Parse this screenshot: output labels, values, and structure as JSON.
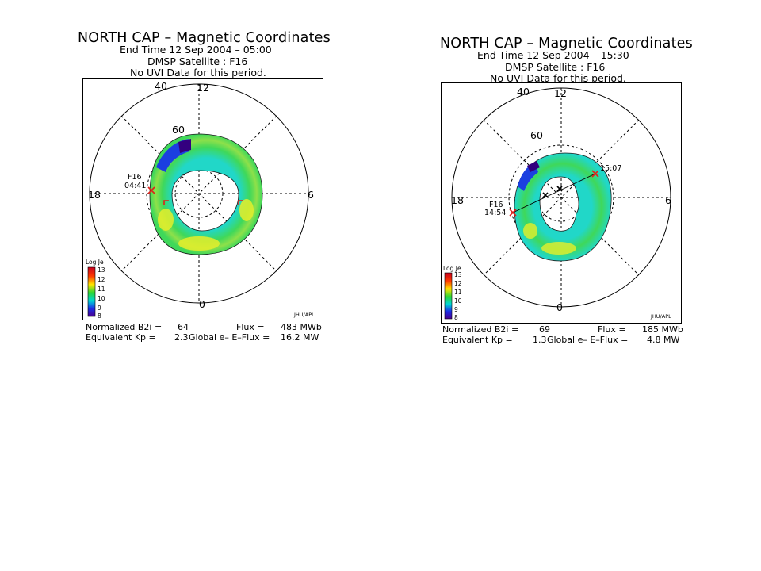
{
  "panels": [
    {
      "title": "NORTH CAP – Magnetic Coordinates",
      "end_time": "End Time 12 Sep 2004 – 05:00",
      "satellite": "DMSP Satellite : F16",
      "uvi_note": "No UVI Data for this period.",
      "grid_labels": {
        "lat_outer": "40",
        "lat_inner": "60",
        "mlt_top": "12",
        "mlt_left": "18",
        "mlt_right": "6",
        "mlt_bottom": "0"
      },
      "pass_labels": [
        {
          "name": "F16",
          "time": "04:41"
        }
      ],
      "colorbar": {
        "label": "Log Je",
        "ticks": [
          "13",
          "12",
          "11",
          "10",
          "9",
          "8"
        ]
      },
      "credit": "JHU/APL",
      "stats": {
        "b2i_label": "Normalized B2i =",
        "b2i_value": "64",
        "flux_label": "Flux =",
        "flux_value": "483 MWb",
        "kp_label": "Equivalent Kp =",
        "kp_value": "2.3",
        "eflux_label": "Global e– E–Flux =",
        "eflux_value": "16.2 MW"
      }
    },
    {
      "title": "NORTH CAP – Magnetic Coordinates",
      "end_time": "End Time 12 Sep 2004 – 15:30",
      "satellite": "DMSP Satellite : F16",
      "uvi_note": "No UVI Data for this period.",
      "grid_labels": {
        "lat_outer": "40",
        "lat_inner": "60",
        "mlt_top": "12",
        "mlt_left": "18",
        "mlt_right": "6",
        "mlt_bottom": "0"
      },
      "pass_labels": [
        {
          "name": "F16",
          "time": "14:54"
        },
        {
          "name": "",
          "time": "15:07"
        }
      ],
      "colorbar": {
        "label": "Log Je",
        "ticks": [
          "13",
          "12",
          "11",
          "10",
          "9",
          "8"
        ]
      },
      "credit": "JHU/APL",
      "stats": {
        "b2i_label": "Normalized B2i =",
        "b2i_value": "69",
        "flux_label": "Flux =",
        "flux_value": "185 MWb",
        "kp_label": "Equivalent Kp =",
        "kp_value": "1.3",
        "eflux_label": "Global e– E–Flux =",
        "eflux_value": "4.8 MW"
      }
    }
  ],
  "colors": {
    "oval_main": "#3fd85a",
    "oval_yellow": "#e6ef2c",
    "oval_cyan": "#21d7c8",
    "oval_blue": "#1b3fe0",
    "oval_purple": "#33007f",
    "track_red": "#e0201a",
    "colorbar_stops": [
      "#c8001e",
      "#ff3a00",
      "#ffe600",
      "#2bd636",
      "#00d6d6",
      "#1c2de6",
      "#4a0090"
    ]
  }
}
